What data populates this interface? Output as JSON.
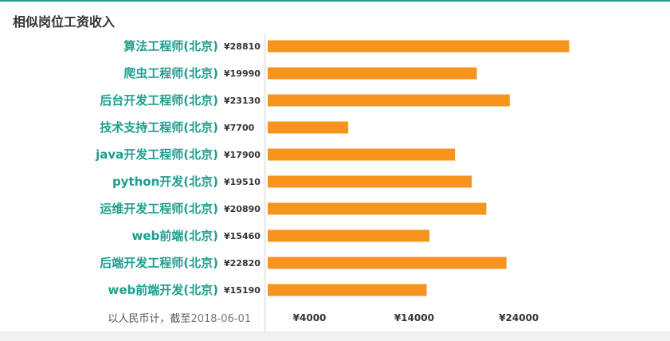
{
  "panel": {
    "title": "相似岗位工资收入",
    "note_prefix": "以人民币计，截至",
    "note_date": "2018-06-01"
  },
  "colors": {
    "bar": "#f7941d",
    "label": "#1f9e8e",
    "accent_border": "#1f9e8e"
  },
  "chart_data": {
    "type": "bar",
    "orientation": "horizontal",
    "title": "相似岗位工资收入",
    "categories": [
      "算法工程师(北京)",
      "爬虫工程师(北京)",
      "后台开发工程师(北京)",
      "技术支持工程师(北京)",
      "java开发工程师(北京)",
      "python开发(北京)",
      "运维开发工程师(北京)",
      "web前端(北京)",
      "后端开发工程师(北京)",
      "web前端开发(北京)"
    ],
    "values": [
      28810,
      19990,
      23130,
      7700,
      17900,
      19510,
      20890,
      15460,
      22820,
      15190
    ],
    "value_labels": [
      "¥28810",
      "¥19990",
      "¥23130",
      "¥7700",
      "¥17900",
      "¥19510",
      "¥20890",
      "¥15460",
      "¥22820",
      "¥15190"
    ],
    "xticks": [
      4000,
      14000,
      24000
    ],
    "xtick_labels": [
      "¥4000",
      "¥14000",
      "¥24000"
    ],
    "xlim": [
      0,
      59000
    ],
    "grid": false
  }
}
